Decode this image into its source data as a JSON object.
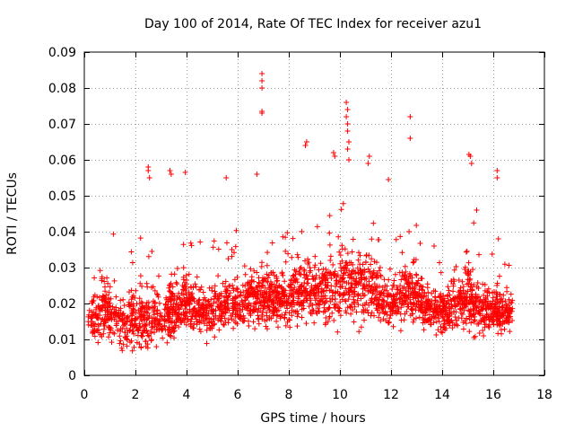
{
  "chart_data": {
    "type": "scatter",
    "title": "Day 100 of 2014, Rate Of TEC Index for receiver azu1",
    "xlabel": "GPS time / hours",
    "ylabel": "ROTI / TECUs",
    "xlim": [
      0,
      18
    ],
    "ylim": [
      0,
      0.09
    ],
    "x_ticks": [
      0,
      2,
      4,
      6,
      8,
      10,
      12,
      14,
      16,
      18
    ],
    "x_tick_labels": [
      "0",
      "2",
      "4",
      "6",
      "8",
      "10",
      "12",
      "14",
      "16",
      "18"
    ],
    "y_ticks": [
      0,
      0.01,
      0.02,
      0.03,
      0.04,
      0.05,
      0.06,
      0.07,
      0.08,
      0.09
    ],
    "y_tick_labels": [
      "0",
      "0.01",
      "0.02",
      "0.03",
      "0.04",
      "0.05",
      "0.06",
      "0.07",
      "0.08",
      "0.09"
    ],
    "grid": true,
    "marker": "+",
    "marker_color": "#ff0000",
    "data_x_range": [
      0.15,
      16.75
    ],
    "series": [
      {
        "name": "ROTI",
        "color": "#ff0000",
        "notable_points": [
          {
            "x": 6.95,
            "y": 0.084
          },
          {
            "x": 6.95,
            "y": 0.082
          },
          {
            "x": 6.95,
            "y": 0.08
          },
          {
            "x": 6.95,
            "y": 0.0735
          },
          {
            "x": 6.95,
            "y": 0.073
          },
          {
            "x": 10.25,
            "y": 0.076
          },
          {
            "x": 10.3,
            "y": 0.074
          },
          {
            "x": 10.25,
            "y": 0.072
          },
          {
            "x": 10.3,
            "y": 0.07
          },
          {
            "x": 10.3,
            "y": 0.068
          },
          {
            "x": 10.35,
            "y": 0.065
          },
          {
            "x": 10.3,
            "y": 0.063
          },
          {
            "x": 10.35,
            "y": 0.06
          },
          {
            "x": 12.75,
            "y": 0.072
          },
          {
            "x": 12.75,
            "y": 0.066
          },
          {
            "x": 8.7,
            "y": 0.065
          },
          {
            "x": 8.65,
            "y": 0.064
          },
          {
            "x": 9.75,
            "y": 0.062
          },
          {
            "x": 9.8,
            "y": 0.061
          },
          {
            "x": 11.15,
            "y": 0.061
          },
          {
            "x": 11.1,
            "y": 0.059
          },
          {
            "x": 15.05,
            "y": 0.0615
          },
          {
            "x": 15.1,
            "y": 0.061
          },
          {
            "x": 15.15,
            "y": 0.059
          },
          {
            "x": 2.5,
            "y": 0.058
          },
          {
            "x": 2.5,
            "y": 0.057
          },
          {
            "x": 2.55,
            "y": 0.055
          },
          {
            "x": 3.35,
            "y": 0.057
          },
          {
            "x": 3.4,
            "y": 0.056
          },
          {
            "x": 3.95,
            "y": 0.0565
          },
          {
            "x": 6.75,
            "y": 0.056
          },
          {
            "x": 5.55,
            "y": 0.055
          },
          {
            "x": 11.9,
            "y": 0.0545
          },
          {
            "x": 16.15,
            "y": 0.057
          },
          {
            "x": 16.15,
            "y": 0.055
          },
          {
            "x": 15.35,
            "y": 0.046
          },
          {
            "x": 16.2,
            "y": 0.038
          }
        ]
      }
    ],
    "envelope": [
      {
        "x": 0.2,
        "base": 0.015,
        "spread": 0.01
      },
      {
        "x": 0.6,
        "base": 0.018,
        "spread": 0.013
      },
      {
        "x": 1.0,
        "base": 0.017,
        "spread": 0.01
      },
      {
        "x": 1.5,
        "base": 0.015,
        "spread": 0.009
      },
      {
        "x": 2.0,
        "base": 0.016,
        "spread": 0.014
      },
      {
        "x": 2.5,
        "base": 0.017,
        "spread": 0.015
      },
      {
        "x": 3.0,
        "base": 0.016,
        "spread": 0.009
      },
      {
        "x": 3.5,
        "base": 0.018,
        "spread": 0.012
      },
      {
        "x": 4.0,
        "base": 0.02,
        "spread": 0.012
      },
      {
        "x": 4.5,
        "base": 0.017,
        "spread": 0.008
      },
      {
        "x": 5.0,
        "base": 0.018,
        "spread": 0.01
      },
      {
        "x": 5.5,
        "base": 0.02,
        "spread": 0.01
      },
      {
        "x": 6.0,
        "base": 0.02,
        "spread": 0.01
      },
      {
        "x": 6.5,
        "base": 0.021,
        "spread": 0.011
      },
      {
        "x": 7.0,
        "base": 0.022,
        "spread": 0.012
      },
      {
        "x": 7.5,
        "base": 0.021,
        "spread": 0.01
      },
      {
        "x": 8.0,
        "base": 0.021,
        "spread": 0.01
      },
      {
        "x": 8.5,
        "base": 0.024,
        "spread": 0.013
      },
      {
        "x": 9.0,
        "base": 0.023,
        "spread": 0.012
      },
      {
        "x": 9.5,
        "base": 0.023,
        "spread": 0.012
      },
      {
        "x": 10.0,
        "base": 0.025,
        "spread": 0.014
      },
      {
        "x": 10.5,
        "base": 0.025,
        "spread": 0.014
      },
      {
        "x": 11.0,
        "base": 0.024,
        "spread": 0.013
      },
      {
        "x": 11.5,
        "base": 0.023,
        "spread": 0.012
      },
      {
        "x": 12.0,
        "base": 0.02,
        "spread": 0.008
      },
      {
        "x": 12.5,
        "base": 0.023,
        "spread": 0.011
      },
      {
        "x": 13.0,
        "base": 0.022,
        "spread": 0.01
      },
      {
        "x": 13.5,
        "base": 0.018,
        "spread": 0.008
      },
      {
        "x": 14.0,
        "base": 0.018,
        "spread": 0.008
      },
      {
        "x": 14.5,
        "base": 0.02,
        "spread": 0.011
      },
      {
        "x": 15.0,
        "base": 0.021,
        "spread": 0.012
      },
      {
        "x": 15.5,
        "base": 0.019,
        "spread": 0.01
      },
      {
        "x": 16.0,
        "base": 0.018,
        "spread": 0.009
      },
      {
        "x": 16.7,
        "base": 0.016,
        "spread": 0.009
      }
    ]
  }
}
